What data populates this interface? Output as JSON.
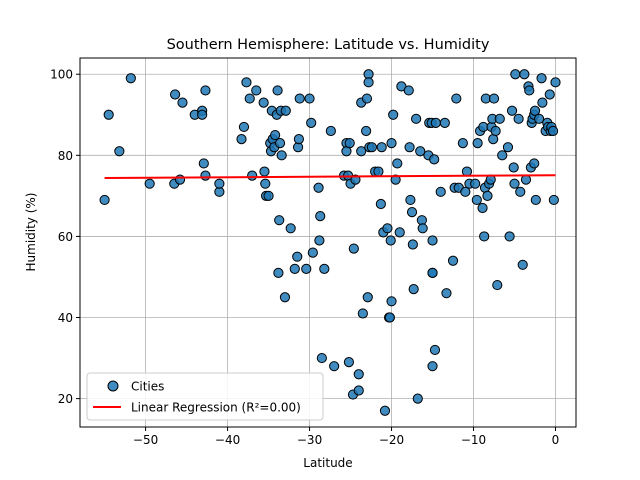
{
  "chart_data": {
    "type": "scatter",
    "title": "Southern Hemisphere: Latitude vs. Humidity",
    "xlabel": "Latitude",
    "ylabel": "Humidity (%)",
    "xlim": [
      -58,
      2.5
    ],
    "ylim": [
      13,
      104
    ],
    "xticks": [
      -50,
      -40,
      -30,
      -20,
      -10,
      0
    ],
    "yticks": [
      20,
      40,
      60,
      80,
      100
    ],
    "grid": true,
    "legend_position": "lower-left",
    "series": [
      {
        "name": "Cities",
        "marker_color": "#1f77b4",
        "points": [
          [
            -55,
            69
          ],
          [
            -54.5,
            90
          ],
          [
            -53.2,
            81
          ],
          [
            -51.8,
            99
          ],
          [
            -49.5,
            73
          ],
          [
            -46.5,
            73
          ],
          [
            -46.4,
            95
          ],
          [
            -45.8,
            74
          ],
          [
            -45.5,
            93
          ],
          [
            -44,
            90
          ],
          [
            -43.1,
            91
          ],
          [
            -43.1,
            90
          ],
          [
            -42.9,
            78
          ],
          [
            -42.7,
            96
          ],
          [
            -42.7,
            75
          ],
          [
            -41,
            71
          ],
          [
            -41,
            73
          ],
          [
            -38.3,
            84
          ],
          [
            -38.0,
            87
          ],
          [
            -37.7,
            98
          ],
          [
            -37.3,
            94
          ],
          [
            -37.0,
            75
          ],
          [
            -36.5,
            96
          ],
          [
            -35.6,
            93
          ],
          [
            -35.5,
            76
          ],
          [
            -35.4,
            73
          ],
          [
            -35.3,
            70
          ],
          [
            -35,
            70
          ],
          [
            -34.8,
            83
          ],
          [
            -34.7,
            81
          ],
          [
            -34.6,
            91
          ],
          [
            -34.5,
            84
          ],
          [
            -34.3,
            82
          ],
          [
            -34.2,
            85
          ],
          [
            -34.0,
            90
          ],
          [
            -33.9,
            96
          ],
          [
            -33.8,
            51
          ],
          [
            -33.7,
            64
          ],
          [
            -33.6,
            83
          ],
          [
            -33.5,
            91
          ],
          [
            -33.4,
            80
          ],
          [
            -33,
            45
          ],
          [
            -32.9,
            91
          ],
          [
            -32.3,
            62
          ],
          [
            -31.8,
            52
          ],
          [
            -31.5,
            55
          ],
          [
            -31.4,
            82
          ],
          [
            -31.3,
            84
          ],
          [
            -31.2,
            94
          ],
          [
            -30.4,
            52
          ],
          [
            -30.0,
            94
          ],
          [
            -29.8,
            88
          ],
          [
            -29.6,
            56
          ],
          [
            -28.9,
            72
          ],
          [
            -28.8,
            59
          ],
          [
            -28.7,
            65
          ],
          [
            -28.5,
            30
          ],
          [
            -28.2,
            52
          ],
          [
            -27.4,
            86
          ],
          [
            -27,
            28
          ],
          [
            -25.8,
            75
          ],
          [
            -25.5,
            83
          ],
          [
            -25.5,
            81
          ],
          [
            -25.3,
            75
          ],
          [
            -25.2,
            29
          ],
          [
            -25.1,
            83
          ],
          [
            -25.0,
            73
          ],
          [
            -24.7,
            21
          ],
          [
            -24.6,
            57
          ],
          [
            -24.4,
            74
          ],
          [
            -24.0,
            22
          ],
          [
            -24.0,
            26
          ],
          [
            -23.7,
            93
          ],
          [
            -23.7,
            81
          ],
          [
            -23.5,
            41
          ],
          [
            -23.1,
            86
          ],
          [
            -23.0,
            94
          ],
          [
            -22.9,
            45
          ],
          [
            -22.8,
            100
          ],
          [
            -22.8,
            98
          ],
          [
            -22.7,
            82
          ],
          [
            -22.4,
            82
          ],
          [
            -22,
            76
          ],
          [
            -21.6,
            76
          ],
          [
            -21.3,
            68
          ],
          [
            -21.2,
            82
          ],
          [
            -21.0,
            61
          ],
          [
            -20.8,
            17
          ],
          [
            -20.5,
            62
          ],
          [
            -20.3,
            40
          ],
          [
            -20.2,
            40
          ],
          [
            -20.1,
            59
          ],
          [
            -20.0,
            44
          ],
          [
            -20.0,
            83
          ],
          [
            -19.8,
            90
          ],
          [
            -19.5,
            74
          ],
          [
            -19.3,
            78
          ],
          [
            -19.0,
            61
          ],
          [
            -18.8,
            97
          ],
          [
            -17.9,
            96
          ],
          [
            -17.8,
            82
          ],
          [
            -17.7,
            69
          ],
          [
            -17.5,
            66
          ],
          [
            -17.4,
            58
          ],
          [
            -17.3,
            47
          ],
          [
            -17.0,
            89
          ],
          [
            -16.8,
            20
          ],
          [
            -16.5,
            81
          ],
          [
            -16.3,
            64
          ],
          [
            -16.2,
            62
          ],
          [
            -15.5,
            80
          ],
          [
            -15.4,
            88
          ],
          [
            -15.1,
            88
          ],
          [
            -15,
            51
          ],
          [
            -15,
            51
          ],
          [
            -15,
            59
          ],
          [
            -15,
            28
          ],
          [
            -14.8,
            79
          ],
          [
            -14.7,
            32
          ],
          [
            -14.6,
            88
          ],
          [
            -14.0,
            71
          ],
          [
            -13.5,
            88
          ],
          [
            -13.3,
            46
          ],
          [
            -12.5,
            54
          ],
          [
            -12.3,
            72
          ],
          [
            -12.1,
            94
          ],
          [
            -11.8,
            72
          ],
          [
            -11.3,
            83
          ],
          [
            -11,
            71
          ],
          [
            -10.8,
            76
          ],
          [
            -10.5,
            73
          ],
          [
            -9.8,
            73
          ],
          [
            -9.6,
            69
          ],
          [
            -9.5,
            83
          ],
          [
            -9.2,
            86
          ],
          [
            -8.9,
            67
          ],
          [
            -8.8,
            87
          ],
          [
            -8.7,
            60
          ],
          [
            -8.6,
            72
          ],
          [
            -8.5,
            94
          ],
          [
            -8.3,
            70
          ],
          [
            -8.1,
            73
          ],
          [
            -7.9,
            74
          ],
          [
            -7.8,
            87
          ],
          [
            -7.7,
            89
          ],
          [
            -7.6,
            84
          ],
          [
            -7.5,
            94
          ],
          [
            -7.3,
            86
          ],
          [
            -7.1,
            48
          ],
          [
            -6.8,
            89
          ],
          [
            -6.5,
            80
          ],
          [
            -5.8,
            82
          ],
          [
            -5.6,
            60
          ],
          [
            -5.3,
            91
          ],
          [
            -5.1,
            77
          ],
          [
            -5.0,
            73
          ],
          [
            -4.9,
            100
          ],
          [
            -4.5,
            89
          ],
          [
            -4.3,
            71
          ],
          [
            -4.0,
            53
          ],
          [
            -3.8,
            100
          ],
          [
            -3.6,
            74
          ],
          [
            -3.3,
            97
          ],
          [
            -3.2,
            96
          ],
          [
            -3.0,
            77
          ],
          [
            -2.9,
            88
          ],
          [
            -2.8,
            89
          ],
          [
            -2.6,
            78
          ],
          [
            -2.6,
            90
          ],
          [
            -2.5,
            91
          ],
          [
            -2.4,
            69
          ],
          [
            -2.0,
            89
          ],
          [
            -1.7,
            99
          ],
          [
            -1.6,
            93
          ],
          [
            -1.2,
            86
          ],
          [
            -1.0,
            88
          ],
          [
            -0.9,
            87
          ],
          [
            -0.7,
            95
          ],
          [
            -0.6,
            86
          ],
          [
            -0.5,
            87
          ],
          [
            -0.3,
            86
          ],
          [
            -0.2,
            69
          ],
          [
            0,
            98
          ]
        ]
      },
      {
        "name": "Linear Regression (R²=0.00)",
        "line_color": "#ff0000",
        "x": [
          -55,
          0
        ],
        "y": [
          74.4,
          75.1
        ]
      }
    ]
  }
}
